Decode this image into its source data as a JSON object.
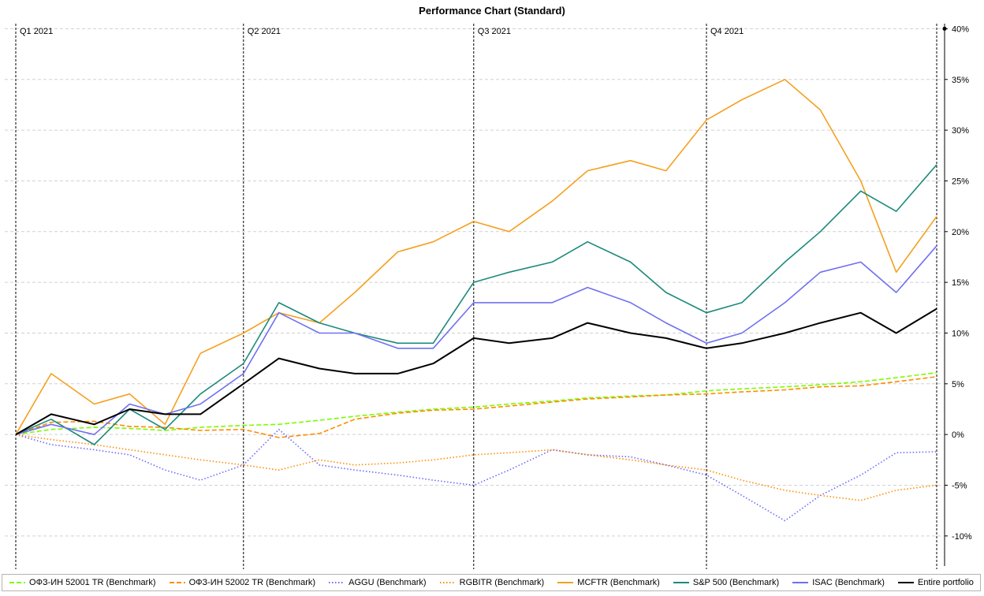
{
  "chart_data": {
    "type": "line",
    "title": "Performance Chart (Standard)",
    "ylabel": "",
    "xlabel": "",
    "x": [
      "2021-01-01",
      "2021-01-15",
      "2021-02-01",
      "2021-02-15",
      "2021-03-01",
      "2021-03-15",
      "2021-04-01",
      "2021-04-15",
      "2021-05-01",
      "2021-05-15",
      "2021-06-01",
      "2021-06-15",
      "2021-07-01",
      "2021-07-15",
      "2021-08-01",
      "2021-08-15",
      "2021-09-01",
      "2021-09-15",
      "2021-10-01",
      "2021-10-15",
      "2021-11-01",
      "2021-11-15",
      "2021-12-01",
      "2021-12-15",
      "2021-12-31"
    ],
    "x_range": [
      "2021-01-01",
      "2021-12-31"
    ],
    "ylim": [
      -0.125,
      0.405
    ],
    "yticks": [
      -0.1,
      -0.05,
      0,
      0.05,
      0.1,
      0.15,
      0.2,
      0.25,
      0.3,
      0.35,
      0.4
    ],
    "ytick_labels": [
      "-10%",
      "-5%",
      "0%",
      "5%",
      "10%",
      "15%",
      "20%",
      "25%",
      "30%",
      "35%",
      "40%"
    ],
    "y_axis_side": "right",
    "quarter_markers": [
      {
        "date": "2021-01-01",
        "label": "Q1 2021"
      },
      {
        "date": "2021-04-01",
        "label": "Q2 2021"
      },
      {
        "date": "2021-07-01",
        "label": "Q3 2021"
      },
      {
        "date": "2021-10-01",
        "label": "Q4 2021"
      }
    ],
    "end_marker": "2021-12-31",
    "grid": true,
    "legend_position": "bottom",
    "series": [
      {
        "name": "ОФЗ-ИН 52001 TR (Benchmark)",
        "color": "#7cfc00",
        "dash": "dashed",
        "values": [
          0.0,
          0.005,
          0.007,
          0.006,
          0.004,
          0.007,
          0.009,
          0.01,
          0.014,
          0.018,
          0.022,
          0.025,
          0.027,
          0.03,
          0.033,
          0.036,
          0.038,
          0.039,
          0.043,
          0.045,
          0.047,
          0.049,
          0.052,
          0.056,
          0.061
        ]
      },
      {
        "name": "ОФЗ-ИН 52002 TR (Benchmark)",
        "color": "#ff8c00",
        "dash": "dashed",
        "values": [
          0.0,
          0.012,
          0.013,
          0.008,
          0.007,
          0.004,
          0.005,
          -0.003,
          0.001,
          0.015,
          0.021,
          0.024,
          0.025,
          0.028,
          0.032,
          0.035,
          0.037,
          0.039,
          0.04,
          0.042,
          0.044,
          0.047,
          0.048,
          0.052,
          0.057
        ]
      },
      {
        "name": "AGGU (Benchmark)",
        "color": "#6a6aff",
        "dash": "dotted",
        "values": [
          0.0,
          -0.01,
          -0.015,
          -0.02,
          -0.035,
          -0.045,
          -0.03,
          0.005,
          -0.03,
          -0.035,
          -0.04,
          -0.045,
          -0.05,
          -0.035,
          -0.015,
          -0.02,
          -0.022,
          -0.03,
          -0.04,
          -0.06,
          -0.085,
          -0.06,
          -0.04,
          -0.018,
          -0.017
        ]
      },
      {
        "name": "RGBITR (Benchmark)",
        "color": "#ff8c00",
        "dash": "dotted",
        "values": [
          0.0,
          -0.005,
          -0.01,
          -0.015,
          -0.02,
          -0.025,
          -0.03,
          -0.035,
          -0.025,
          -0.03,
          -0.028,
          -0.025,
          -0.02,
          -0.018,
          -0.015,
          -0.02,
          -0.025,
          -0.03,
          -0.035,
          -0.045,
          -0.055,
          -0.06,
          -0.065,
          -0.055,
          -0.05
        ]
      },
      {
        "name": "MCFTR (Benchmark)",
        "color": "#f5a020",
        "dash": "solid",
        "values": [
          0.0,
          0.06,
          0.03,
          0.04,
          0.01,
          0.08,
          0.1,
          0.12,
          0.11,
          0.14,
          0.18,
          0.19,
          0.21,
          0.2,
          0.23,
          0.26,
          0.27,
          0.26,
          0.31,
          0.33,
          0.35,
          0.32,
          0.25,
          0.16,
          0.215
        ]
      },
      {
        "name": "S&P 500 (Benchmark)",
        "color": "#1b8a7a",
        "dash": "solid",
        "values": [
          0.0,
          0.015,
          -0.01,
          0.025,
          0.005,
          0.04,
          0.07,
          0.13,
          0.11,
          0.1,
          0.09,
          0.09,
          0.15,
          0.16,
          0.17,
          0.19,
          0.17,
          0.14,
          0.12,
          0.13,
          0.17,
          0.2,
          0.24,
          0.22,
          0.266
        ]
      },
      {
        "name": "ISAC (Benchmark)",
        "color": "#7070f0",
        "dash": "solid",
        "values": [
          0.0,
          0.01,
          0.0,
          0.03,
          0.02,
          0.03,
          0.06,
          0.12,
          0.1,
          0.1,
          0.085,
          0.085,
          0.13,
          0.13,
          0.13,
          0.145,
          0.13,
          0.11,
          0.09,
          0.1,
          0.13,
          0.16,
          0.17,
          0.14,
          0.186
        ]
      },
      {
        "name": "Entire portfolio",
        "color": "#000000",
        "dash": "solid",
        "values": [
          0.0,
          0.02,
          0.01,
          0.025,
          0.02,
          0.02,
          0.05,
          0.075,
          0.065,
          0.06,
          0.06,
          0.07,
          0.095,
          0.09,
          0.095,
          0.11,
          0.1,
          0.095,
          0.085,
          0.09,
          0.1,
          0.11,
          0.12,
          0.1,
          0.124
        ]
      }
    ]
  }
}
